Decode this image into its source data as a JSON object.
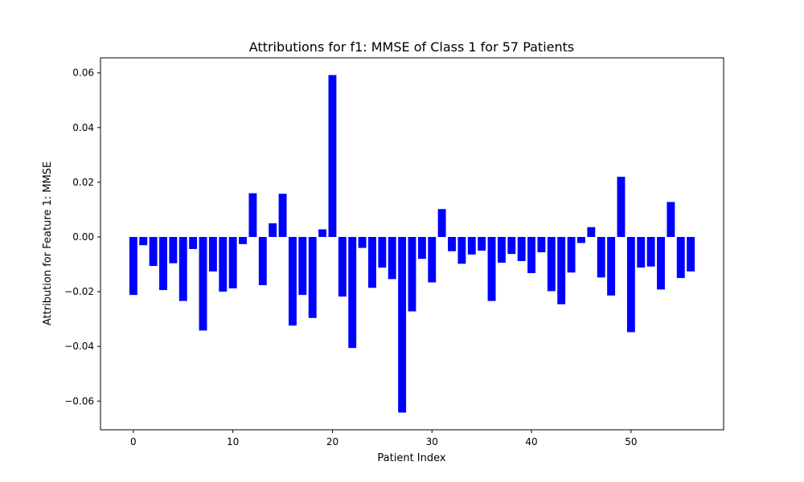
{
  "chart_data": {
    "type": "bar",
    "title": "Attributions for f1: MMSE of Class 1 for 57 Patients",
    "xlabel": "Patient Index",
    "ylabel": "Attribution for Feature 1: MMSE",
    "bar_color": "#0000ff",
    "xlim": [
      -3.3,
      59.3
    ],
    "ylim": [
      -0.0705,
      0.0655
    ],
    "xticks": [
      0,
      10,
      20,
      30,
      40,
      50
    ],
    "yticks": [
      -0.06,
      -0.04,
      -0.02,
      0.0,
      0.02,
      0.04,
      0.06
    ],
    "ytick_labels": [
      "−0.06",
      "−0.04",
      "−0.02",
      "0.00",
      "0.02",
      "0.04",
      "0.06"
    ],
    "grid": false,
    "x": [
      0,
      1,
      2,
      3,
      4,
      5,
      6,
      7,
      8,
      9,
      10,
      11,
      12,
      13,
      14,
      15,
      16,
      17,
      18,
      19,
      20,
      21,
      22,
      23,
      24,
      25,
      26,
      27,
      28,
      29,
      30,
      31,
      32,
      33,
      34,
      35,
      36,
      37,
      38,
      39,
      40,
      41,
      42,
      43,
      44,
      45,
      46,
      47,
      48,
      49,
      50,
      51,
      52,
      53,
      54,
      55,
      56
    ],
    "values": [
      -0.0212,
      -0.003,
      -0.0106,
      -0.0194,
      -0.0096,
      -0.0234,
      -0.0044,
      -0.0342,
      -0.0126,
      -0.02,
      -0.0188,
      -0.0026,
      0.016,
      -0.0176,
      0.005,
      0.0158,
      -0.0324,
      -0.0212,
      -0.0296,
      0.0028,
      0.0592,
      -0.0218,
      -0.0406,
      -0.004,
      -0.0186,
      -0.0112,
      -0.0154,
      -0.0642,
      -0.0272,
      -0.008,
      -0.0166,
      0.0102,
      -0.0052,
      -0.0098,
      -0.0064,
      -0.005,
      -0.0234,
      -0.0094,
      -0.0062,
      -0.0088,
      -0.0132,
      -0.0056,
      -0.0198,
      -0.0246,
      -0.013,
      -0.0022,
      0.0036,
      -0.0148,
      -0.0214,
      0.022,
      -0.0348,
      -0.0112,
      -0.0108,
      -0.0192,
      0.0128,
      -0.015,
      -0.0126
    ]
  }
}
